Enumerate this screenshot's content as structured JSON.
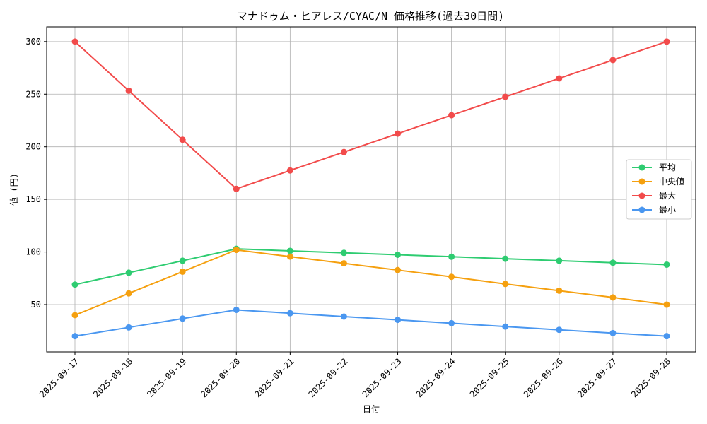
{
  "chart_data": {
    "type": "line",
    "title": "マナドゥム・ヒアレス/CYAC/N 価格推移(過去30日間)",
    "xlabel": "日付",
    "ylabel": "値 (円)",
    "categories": [
      "2025-09-17",
      "2025-09-18",
      "2025-09-19",
      "2025-09-20",
      "2025-09-21",
      "2025-09-22",
      "2025-09-23",
      "2025-09-24",
      "2025-09-25",
      "2025-09-26",
      "2025-09-27",
      "2025-09-28"
    ],
    "ylim": [
      5,
      314
    ],
    "yticks": [
      50,
      100,
      150,
      200,
      250,
      300
    ],
    "grid": true,
    "legend_position": "center-right",
    "series": [
      {
        "name": "平均",
        "color": "#2ecc71",
        "values": [
          69,
          80.3,
          91.7,
          103,
          101.1,
          99.2,
          97.4,
          95.5,
          93.6,
          91.7,
          89.8,
          88
        ]
      },
      {
        "name": "中央値",
        "color": "#f5a00f",
        "values": [
          40,
          60.6,
          81.3,
          102,
          95.6,
          89.2,
          82.8,
          76.4,
          69.6,
          63.2,
          56.8,
          50
        ]
      },
      {
        "name": "最大",
        "color": "#f24b4b",
        "values": [
          300,
          253.3,
          206.7,
          160,
          177.5,
          195,
          212.5,
          230,
          247.5,
          265,
          282.5,
          300
        ]
      },
      {
        "name": "最小",
        "color": "#4a97f0",
        "values": [
          20,
          28.3,
          36.7,
          45,
          41.8,
          38.6,
          35.5,
          32.3,
          29.1,
          26,
          22.9,
          20
        ]
      }
    ]
  }
}
